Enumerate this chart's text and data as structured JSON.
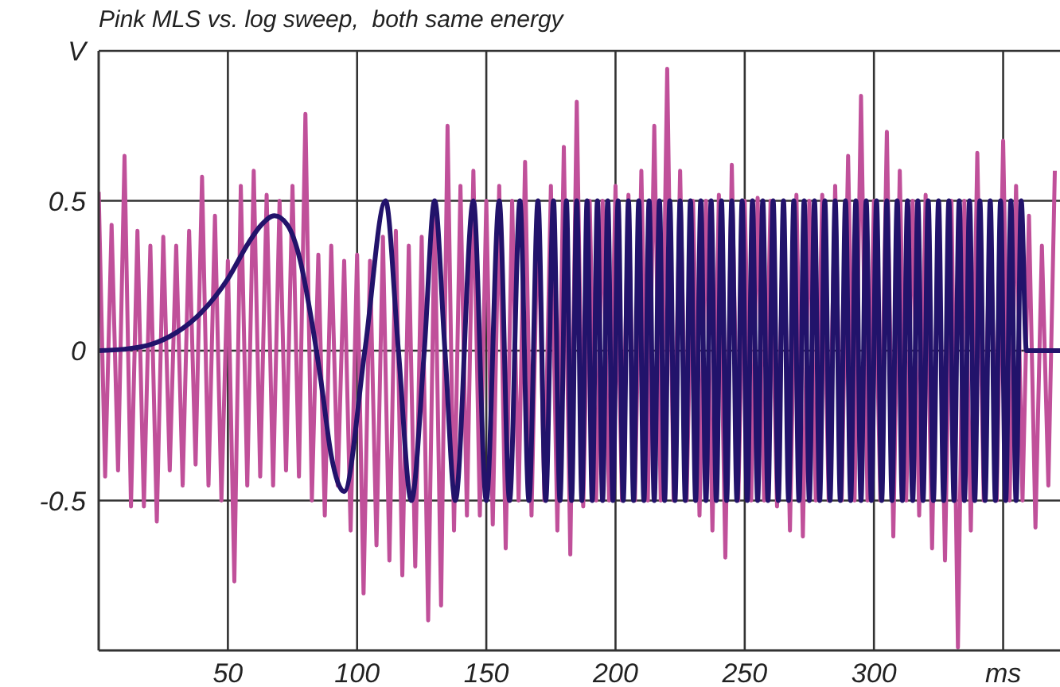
{
  "chart_data": {
    "type": "line",
    "title": "Pink MLS vs. log sweep,  both same energy",
    "xlim": [
      0,
      372
    ],
    "xticks": [
      50,
      100,
      150,
      200,
      250,
      300,
      {
        "value": 350,
        "label": "ms"
      }
    ],
    "ylim": [
      -1,
      1
    ],
    "yticks": [
      -0.5,
      0,
      0.5,
      {
        "value": 1,
        "label": "V"
      }
    ],
    "grid": true,
    "marker": "none",
    "line_style": "solid",
    "series": [
      {
        "color": "#c0509a",
        "x": [
          0,
          2.5,
          5,
          7.5,
          10,
          12.5,
          15,
          17.5,
          20,
          22.5,
          25,
          27.5,
          30,
          32.5,
          35,
          37.5,
          40,
          42.5,
          45,
          47.5,
          50,
          52.5,
          55,
          57.5,
          60,
          62.5,
          65,
          67.5,
          70,
          72.5,
          75,
          77.5,
          80,
          82.5,
          85,
          87.5,
          90,
          92.5,
          95,
          97.5,
          100,
          102.5,
          105,
          107.5,
          110,
          112.5,
          115,
          117.5,
          120,
          122.5,
          125,
          127.5,
          130,
          132.5,
          135,
          137.5,
          140,
          142.5,
          145,
          147.5,
          150,
          152.5,
          155,
          157.5,
          160,
          162.5,
          165,
          167.5,
          170,
          172.5,
          175,
          177.5,
          180,
          182.5,
          185,
          187.5,
          190,
          192.5,
          195,
          197.5,
          200,
          202.5,
          205,
          207.5,
          210,
          212.5,
          215,
          217.5,
          220,
          222.5,
          225,
          227.5,
          230,
          232.5,
          235,
          237.5,
          240,
          242.5,
          245,
          247.5,
          250,
          252.5,
          255,
          257.5,
          260,
          262.5,
          265,
          267.5,
          270,
          272.5,
          275,
          277.5,
          280,
          282.5,
          285,
          287.5,
          290,
          292.5,
          295,
          297.5,
          300,
          302.5,
          305,
          307.5,
          310,
          312.5,
          315,
          317.5,
          320,
          322.5,
          325,
          327.5,
          330,
          332.5,
          335,
          337.5,
          340,
          342.5,
          345,
          347.5,
          350,
          352.5,
          355,
          357.5,
          360,
          362.5,
          365,
          367.5,
          370
        ],
        "values": [
          0.53,
          -0.42,
          0.42,
          -0.4,
          0.65,
          -0.52,
          0.4,
          -0.52,
          0.35,
          -0.57,
          0.38,
          -0.4,
          0.35,
          -0.45,
          0.4,
          -0.38,
          0.58,
          -0.45,
          0.45,
          -0.5,
          0.3,
          -0.77,
          0.55,
          -0.45,
          0.6,
          -0.42,
          0.52,
          -0.45,
          0.5,
          -0.4,
          0.55,
          -0.42,
          0.79,
          -0.5,
          0.32,
          -0.55,
          0.35,
          -0.45,
          0.3,
          -0.6,
          0.32,
          -0.81,
          0.3,
          -0.65,
          0.38,
          -0.7,
          0.4,
          -0.75,
          0.35,
          -0.72,
          0.38,
          -0.9,
          0.45,
          -0.85,
          0.75,
          -0.6,
          0.55,
          -0.55,
          0.6,
          -0.55,
          0.5,
          -0.58,
          0.55,
          -0.66,
          0.5,
          -0.5,
          0.63,
          -0.55,
          0.5,
          -0.5,
          0.55,
          -0.6,
          0.68,
          -0.68,
          0.83,
          -0.52,
          0.5,
          -0.5,
          0.5,
          -0.5,
          0.55,
          -0.5,
          0.52,
          -0.5,
          0.6,
          -0.5,
          0.75,
          -0.5,
          0.94,
          -0.5,
          0.6,
          -0.5,
          0.5,
          -0.55,
          0.5,
          -0.6,
          0.52,
          -0.69,
          0.62,
          -0.5,
          0.5,
          -0.5,
          0.51,
          -0.5,
          0.5,
          -0.52,
          0.5,
          -0.6,
          0.52,
          -0.62,
          0.5,
          -0.5,
          0.52,
          -0.5,
          0.55,
          -0.5,
          0.65,
          -0.5,
          0.85,
          -0.5,
          0.5,
          -0.5,
          0.73,
          -0.62,
          0.6,
          -0.5,
          0.5,
          -0.55,
          0.52,
          -0.66,
          0.5,
          -0.7,
          0.5,
          -0.99,
          0.5,
          -0.6,
          0.66,
          -0.5,
          0.5,
          -0.5,
          0.7,
          -0.5,
          0.55,
          -0.5,
          0.45,
          -0.59,
          0.35,
          -0.45,
          0.6
        ]
      },
      {
        "color": "#22136b",
        "x": [
          0,
          10,
          20,
          30,
          40,
          50,
          58,
          63,
          68,
          73,
          78,
          82,
          86,
          90,
          95,
          103,
          111,
          116,
          121,
          126,
          130,
          134,
          138,
          145,
          150,
          155,
          159,
          163,
          166.5,
          170,
          173,
          176,
          178.5,
          181,
          183,
          185,
          187,
          189,
          191,
          193,
          195,
          197,
          199,
          201,
          203,
          205,
          207,
          209,
          211,
          213,
          215,
          217,
          219,
          221,
          223,
          225,
          227,
          229,
          231,
          233,
          235,
          237,
          239,
          241,
          243,
          245,
          247,
          249,
          251,
          253,
          255,
          257,
          259,
          261,
          263,
          265,
          267,
          269,
          271,
          273,
          275,
          277,
          279,
          281,
          283,
          285,
          287,
          289,
          291,
          293,
          295,
          297,
          299,
          301,
          303,
          305,
          307,
          309,
          311,
          313,
          315,
          317,
          319,
          321,
          323,
          325,
          327,
          329,
          331,
          333,
          335,
          337,
          339,
          341,
          343,
          345,
          347,
          349,
          351,
          353,
          355,
          357,
          359,
          372
        ],
        "values": [
          0,
          0.005,
          0.02,
          0.06,
          0.13,
          0.24,
          0.36,
          0.42,
          0.45,
          0.42,
          0.3,
          0.12,
          -0.1,
          -0.35,
          -0.47,
          0,
          0.5,
          0,
          -0.5,
          0,
          0.5,
          0,
          -0.5,
          0.5,
          -0.5,
          0.5,
          -0.5,
          0.5,
          -0.5,
          0.5,
          -0.5,
          0.5,
          -0.5,
          0.5,
          -0.5,
          0.5,
          -0.5,
          0.5,
          -0.5,
          0.5,
          -0.5,
          0.5,
          -0.5,
          0.5,
          -0.5,
          0.5,
          -0.5,
          0.5,
          -0.5,
          0.5,
          -0.5,
          0.5,
          -0.5,
          0.5,
          -0.5,
          0.5,
          -0.5,
          0.5,
          -0.5,
          0.5,
          -0.5,
          0.5,
          -0.5,
          0.5,
          -0.5,
          0.5,
          -0.5,
          0.5,
          -0.5,
          0.5,
          -0.5,
          0.5,
          -0.5,
          0.5,
          -0.5,
          0.5,
          -0.5,
          0.5,
          -0.5,
          0.5,
          -0.5,
          0.5,
          -0.5,
          0.5,
          -0.5,
          0.5,
          -0.5,
          0.5,
          -0.5,
          0.5,
          -0.5,
          0.5,
          -0.5,
          0.5,
          -0.5,
          0.5,
          -0.5,
          0.5,
          -0.5,
          0.5,
          -0.5,
          0.5,
          -0.5,
          0.5,
          -0.5,
          0.5,
          -0.5,
          0.5,
          -0.5,
          0.5,
          -0.5,
          0.5,
          -0.5,
          0.5,
          -0.5,
          0.5,
          -0.5,
          0.5,
          -0.5,
          0.5,
          -0.5,
          0.5,
          0,
          0
        ]
      }
    ]
  }
}
